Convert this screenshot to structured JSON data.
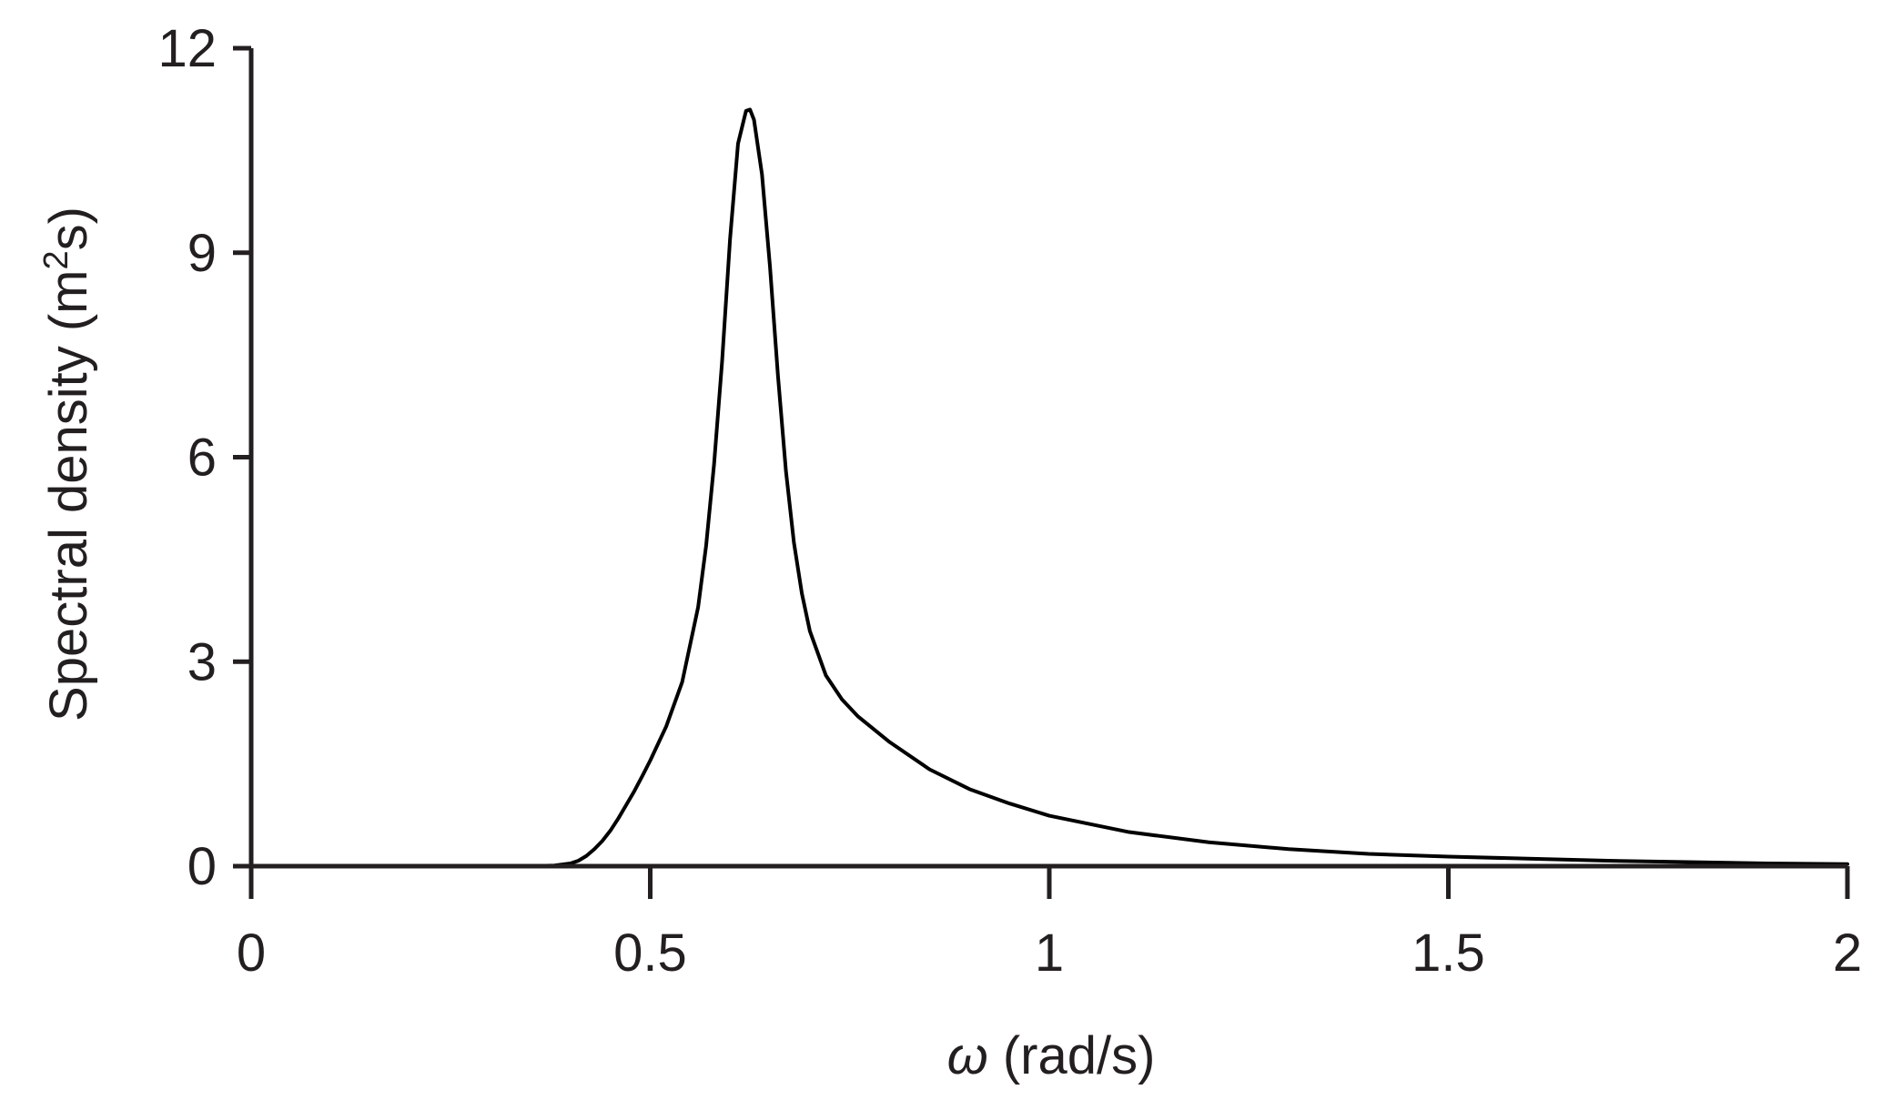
{
  "chart_data": {
    "type": "line",
    "title": "",
    "xlabel_symbol": "ω",
    "xlabel_rest": " (rad/s)",
    "ylabel_prefix": "Spectral density (m",
    "ylabel_sup": "2",
    "ylabel_suffix": "s)",
    "xlim": [
      0,
      2
    ],
    "ylim": [
      0,
      12
    ],
    "x_ticks": [
      0,
      0.5,
      1,
      1.5,
      2
    ],
    "x_tick_labels": [
      "0",
      "0.5",
      "1",
      "1.5",
      "2"
    ],
    "y_ticks": [
      0,
      3,
      6,
      9,
      12
    ],
    "y_tick_labels": [
      "0",
      "3",
      "6",
      "9",
      "12"
    ],
    "grid": false,
    "series": [
      {
        "color": "#000000",
        "x": [
          0,
          0.1,
          0.2,
          0.3,
          0.35,
          0.38,
          0.4,
          0.41,
          0.42,
          0.43,
          0.44,
          0.45,
          0.46,
          0.47,
          0.48,
          0.49,
          0.5,
          0.52,
          0.54,
          0.56,
          0.57,
          0.58,
          0.59,
          0.6,
          0.61,
          0.62,
          0.625,
          0.63,
          0.64,
          0.65,
          0.66,
          0.67,
          0.68,
          0.69,
          0.7,
          0.72,
          0.74,
          0.76,
          0.8,
          0.85,
          0.9,
          0.95,
          1.0,
          1.1,
          1.2,
          1.3,
          1.4,
          1.5,
          1.6,
          1.7,
          1.8,
          1.9,
          2.0
        ],
        "y": [
          0,
          0,
          0,
          0,
          0,
          0.01,
          0.04,
          0.08,
          0.15,
          0.25,
          0.37,
          0.52,
          0.7,
          0.9,
          1.1,
          1.32,
          1.55,
          2.05,
          2.7,
          3.8,
          4.7,
          5.9,
          7.4,
          9.2,
          10.6,
          11.08,
          11.1,
          10.95,
          10.15,
          8.8,
          7.2,
          5.8,
          4.75,
          4.0,
          3.45,
          2.8,
          2.45,
          2.2,
          1.82,
          1.42,
          1.13,
          0.92,
          0.74,
          0.5,
          0.35,
          0.25,
          0.18,
          0.14,
          0.11,
          0.08,
          0.06,
          0.04,
          0.03
        ]
      }
    ]
  }
}
